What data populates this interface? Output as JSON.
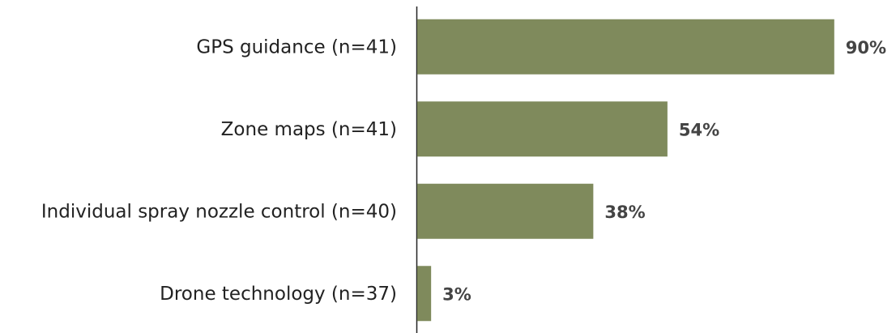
{
  "chart_data": {
    "type": "bar",
    "orientation": "horizontal",
    "categories": [
      "GPS guidance (n=41)",
      "Zone maps (n=41)",
      "Individual spray nozzle control (n=40)",
      "Drone technology (n=37)"
    ],
    "values": [
      90,
      54,
      38,
      3
    ],
    "value_labels": [
      "90%",
      "54%",
      "38%",
      "3%"
    ],
    "color": "#7f8a5c",
    "xlim": [
      0,
      100
    ]
  }
}
